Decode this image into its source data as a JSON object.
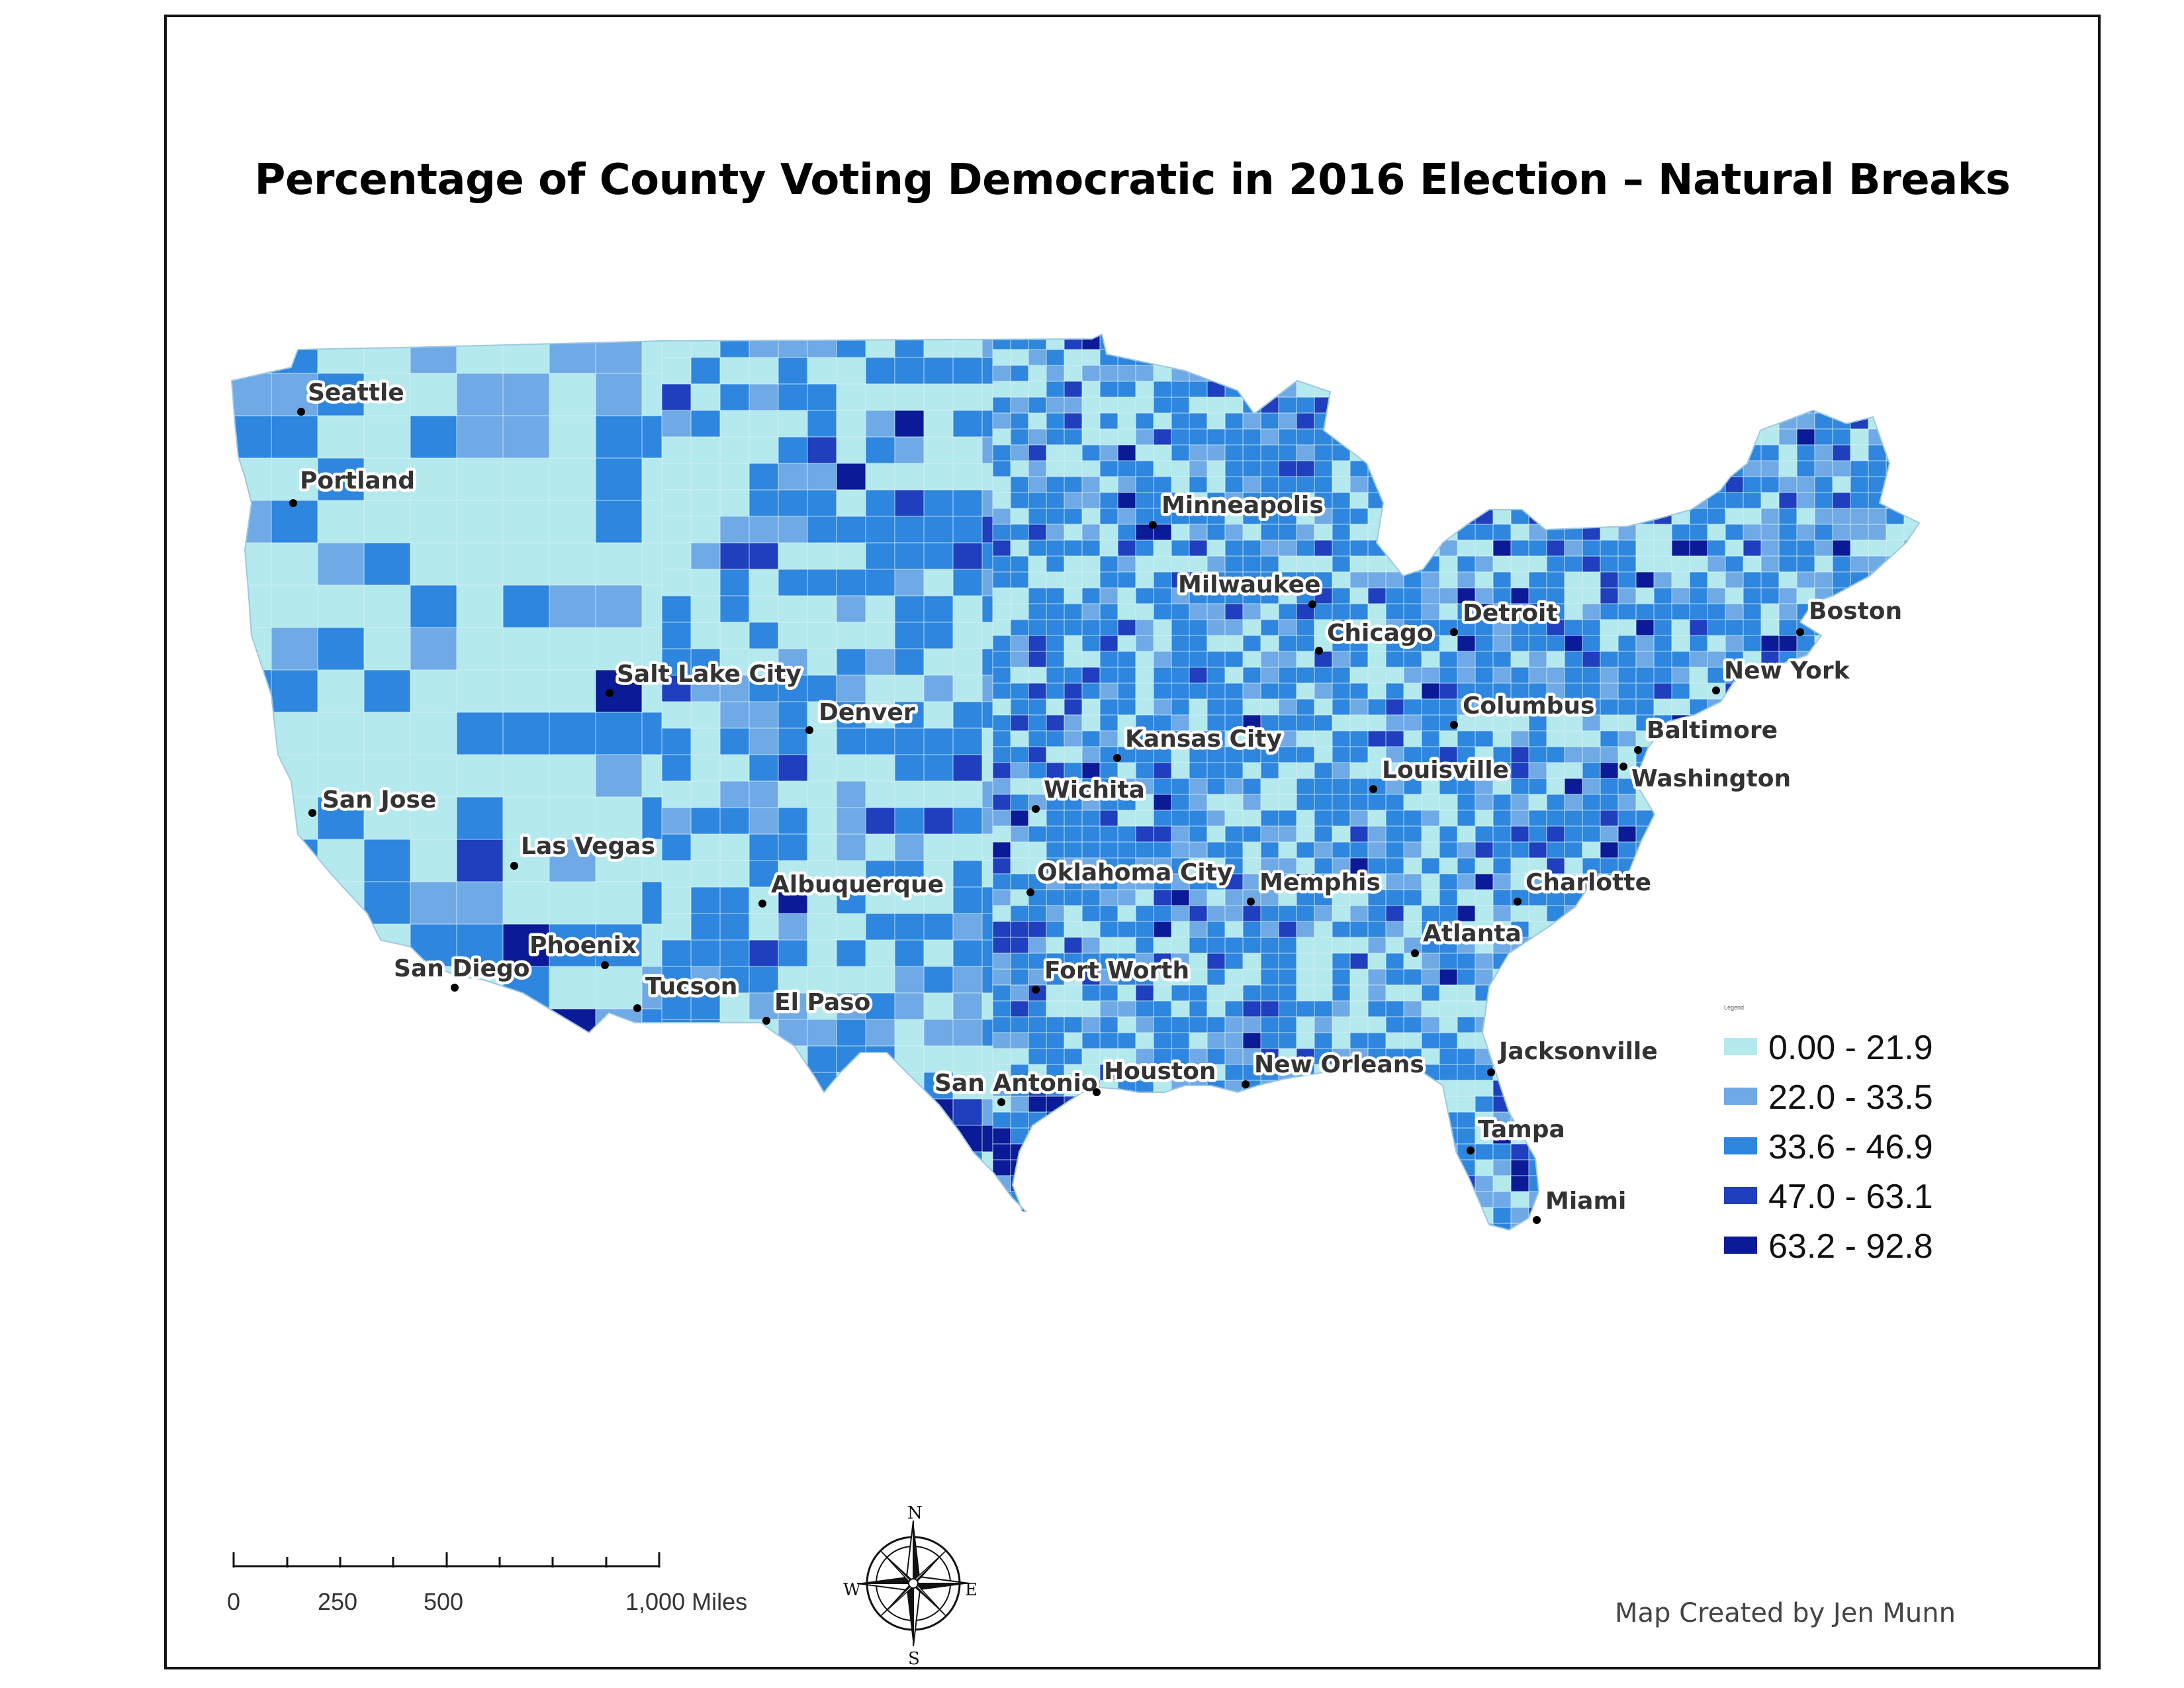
{
  "map": {
    "title": "Percentage of County Voting Democratic in 2016 Election – Natural Breaks",
    "credit": "Map Created by Jen Munn",
    "legend": {
      "heading": "Legend",
      "classes": [
        {
          "label": "0.00 - 21.9",
          "color": "#b4e9ee"
        },
        {
          "label": "22.0 - 33.5",
          "color": "#6fa9e6"
        },
        {
          "label": "33.6 - 46.9",
          "color": "#2e86de"
        },
        {
          "label": "47.0 - 63.1",
          "color": "#1f3fbe"
        },
        {
          "label": "63.2 - 92.8",
          "color": "#0b1a96"
        }
      ]
    },
    "scale_bar": {
      "ticks": [
        "0",
        "250",
        "500",
        "1,000 Miles"
      ],
      "unit": "Miles"
    },
    "compass": {
      "n": "N",
      "s": "S",
      "e": "E",
      "w": "W"
    },
    "cities": [
      "Seattle",
      "Portland",
      "San Jose",
      "Las Vegas",
      "San Diego",
      "Phoenix",
      "Tucson",
      "Salt Lake City",
      "Denver",
      "Albuquerque",
      "El Paso",
      "Wichita",
      "Kansas City",
      "Oklahoma City",
      "Fort Worth",
      "San Antonio",
      "Houston",
      "Minneapolis",
      "Milwaukee",
      "Chicago",
      "Detroit",
      "Columbus",
      "Louisville",
      "Memphis",
      "New Orleans",
      "Atlanta",
      "Charlotte",
      "Jacksonville",
      "Tampa",
      "Miami",
      "Washington",
      "Baltimore",
      "New York",
      "Boston"
    ]
  }
}
